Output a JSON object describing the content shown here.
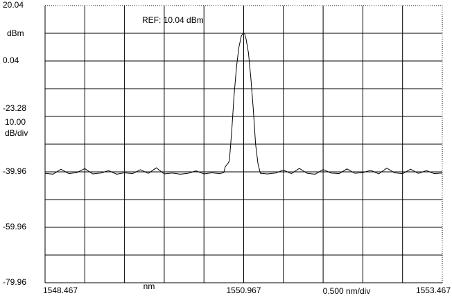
{
  "chart_data": {
    "type": "line",
    "annotations": [
      "REF: 10.04 dBm",
      "dBm",
      "-23.28",
      "10.00",
      "dB/div",
      "nm",
      "0.500 nm/div"
    ],
    "xlim": [
      1548.467,
      1553.467
    ],
    "xticks": [
      1548.467,
      1550.967,
      1553.467
    ],
    "ylim": [
      -79.96,
      20.04
    ],
    "yticks": [
      20.04,
      0.04,
      -39.96,
      -59.96,
      -79.96
    ],
    "xgrid_divisions": 10,
    "ygrid_divisions": 10,
    "grid": true,
    "series": [
      {
        "color": "#000000",
        "x": [
          1548.467,
          1548.567,
          1548.667,
          1548.767,
          1548.867,
          1548.967,
          1549.067,
          1549.167,
          1549.267,
          1549.367,
          1549.467,
          1549.567,
          1549.667,
          1549.767,
          1549.867,
          1549.967,
          1550.067,
          1550.167,
          1550.267,
          1550.367,
          1550.467,
          1550.567,
          1550.667,
          1550.717,
          1550.737,
          1550.767,
          1550.787,
          1550.817,
          1550.847,
          1550.877,
          1550.907,
          1550.937,
          1550.957,
          1550.967,
          1550.977,
          1550.997,
          1551.027,
          1551.057,
          1551.087,
          1551.117,
          1551.147,
          1551.177,
          1551.267,
          1551.367,
          1551.467,
          1551.567,
          1551.667,
          1551.767,
          1551.867,
          1551.967,
          1552.067,
          1552.167,
          1552.267,
          1552.367,
          1552.467,
          1552.567,
          1552.667,
          1552.767,
          1552.867,
          1552.967,
          1553.067,
          1553.167,
          1553.267,
          1553.367,
          1553.467
        ],
        "values": [
          -40.5,
          -40.8,
          -39.0,
          -40.6,
          -40.2,
          -38.8,
          -40.7,
          -40.4,
          -39.5,
          -40.8,
          -40.3,
          -40.6,
          -39.2,
          -40.5,
          -38.5,
          -40.7,
          -40.4,
          -40.8,
          -40.5,
          -39.6,
          -40.7,
          -40.3,
          -40.6,
          -40.2,
          -38.0,
          -37.0,
          -36.0,
          -25.0,
          -12.0,
          -2.0,
          5.0,
          9.0,
          10.0,
          10.2,
          10.0,
          8.0,
          3.0,
          -6.0,
          -17.0,
          -30.0,
          -37.0,
          -40.5,
          -40.7,
          -40.4,
          -39.3,
          -40.6,
          -38.7,
          -40.5,
          -40.8,
          -39.1,
          -40.4,
          -40.6,
          -38.9,
          -40.5,
          -40.2,
          -39.4,
          -40.7,
          -38.6,
          -40.3,
          -40.6,
          -39.0,
          -40.5,
          -39.5,
          -40.6,
          -40.4
        ]
      }
    ]
  }
}
